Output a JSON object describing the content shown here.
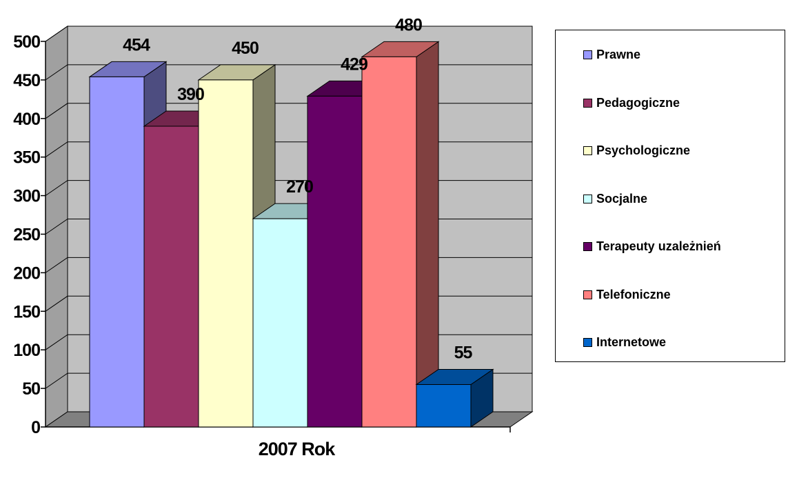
{
  "chart_data": {
    "type": "bar",
    "three_d": true,
    "xlabel": "2007 Rok",
    "categories": [
      "2007 Rok"
    ],
    "ylim": [
      0,
      500
    ],
    "yticks": [
      0,
      50,
      100,
      150,
      200,
      250,
      300,
      350,
      400,
      450,
      500
    ],
    "grid": true,
    "legend_position": "right",
    "series": [
      {
        "name": "Prawne",
        "value": 454,
        "label": "454",
        "color": "#9999FF"
      },
      {
        "name": "Pedagogiczne",
        "value": 390,
        "label": "390",
        "color": "#993366"
      },
      {
        "name": "Psychologiczne",
        "value": 450,
        "label": "450",
        "color": "#FFFFCC"
      },
      {
        "name": "Socjalne",
        "value": 270,
        "label": "270",
        "color": "#CCFFFF"
      },
      {
        "name": "Terapeuty uzależnień",
        "value": 429,
        "label": "429",
        "color": "#660066"
      },
      {
        "name": "Telefoniczne",
        "value": 480,
        "label": "480",
        "color": "#FF8080"
      },
      {
        "name": "Internetowe",
        "value": 55,
        "label": "55",
        "color": "#0066CC"
      }
    ]
  }
}
